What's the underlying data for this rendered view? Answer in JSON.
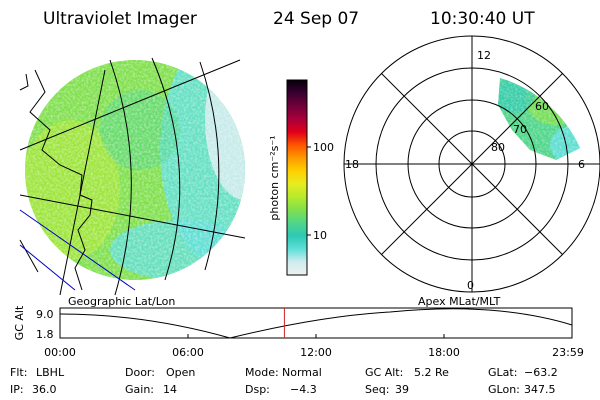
{
  "header": {
    "instrument": "Ultraviolet Imager",
    "date": "24 Sep 07",
    "time": "10:30:40 UT"
  },
  "geo_map": {
    "caption": "Geographic Lat/Lon"
  },
  "colorbar": {
    "unit_label": "photon cm⁻²s⁻¹",
    "ticks": [
      "100",
      "10"
    ],
    "scale": "log",
    "colors": [
      "#f0f0f0",
      "#d0ecee",
      "#5fdfd8",
      "#2ec9b4",
      "#4fd68a",
      "#7fe04c",
      "#b6ea2e",
      "#e7ec20",
      "#ffd000",
      "#ff9a00",
      "#ff5500",
      "#e0001a",
      "#a8003a",
      "#70003a",
      "#3a0030",
      "#05000a"
    ]
  },
  "polar_plot": {
    "caption": "Apex MLat/MLT",
    "mlt_labels": [
      "12",
      "18",
      "6",
      "0"
    ],
    "mlat_labels": [
      "60",
      "70",
      "80"
    ]
  },
  "altitude_strip": {
    "ylabel": "GC Alt",
    "ymax_label": "9.0",
    "ymin_label": "1.8",
    "ticks": [
      "00:00",
      "06:00",
      "12:00",
      "18:00",
      "23:59"
    ],
    "marker_time": "10:30:40",
    "marker_color": "#cc2222"
  },
  "info": [
    [
      {
        "label": "Flt:",
        "value": "LBHL"
      },
      {
        "label": "Door:",
        "value": "Open"
      },
      {
        "label": "Mode:",
        "value": "Normal"
      },
      {
        "label": "GC Alt:",
        "value": "5.2 Re"
      },
      {
        "label": "GLat:",
        "value": "−63.2"
      }
    ],
    [
      {
        "label": "IP:",
        "value": "36.0"
      },
      {
        "label": "Gain:",
        "value": "14"
      },
      {
        "label": "Dsp:",
        "value": "−4.3"
      },
      {
        "label": "Seq:",
        "value": "39"
      },
      {
        "label": "GLon:",
        "value": "347.5"
      }
    ]
  ]
}
